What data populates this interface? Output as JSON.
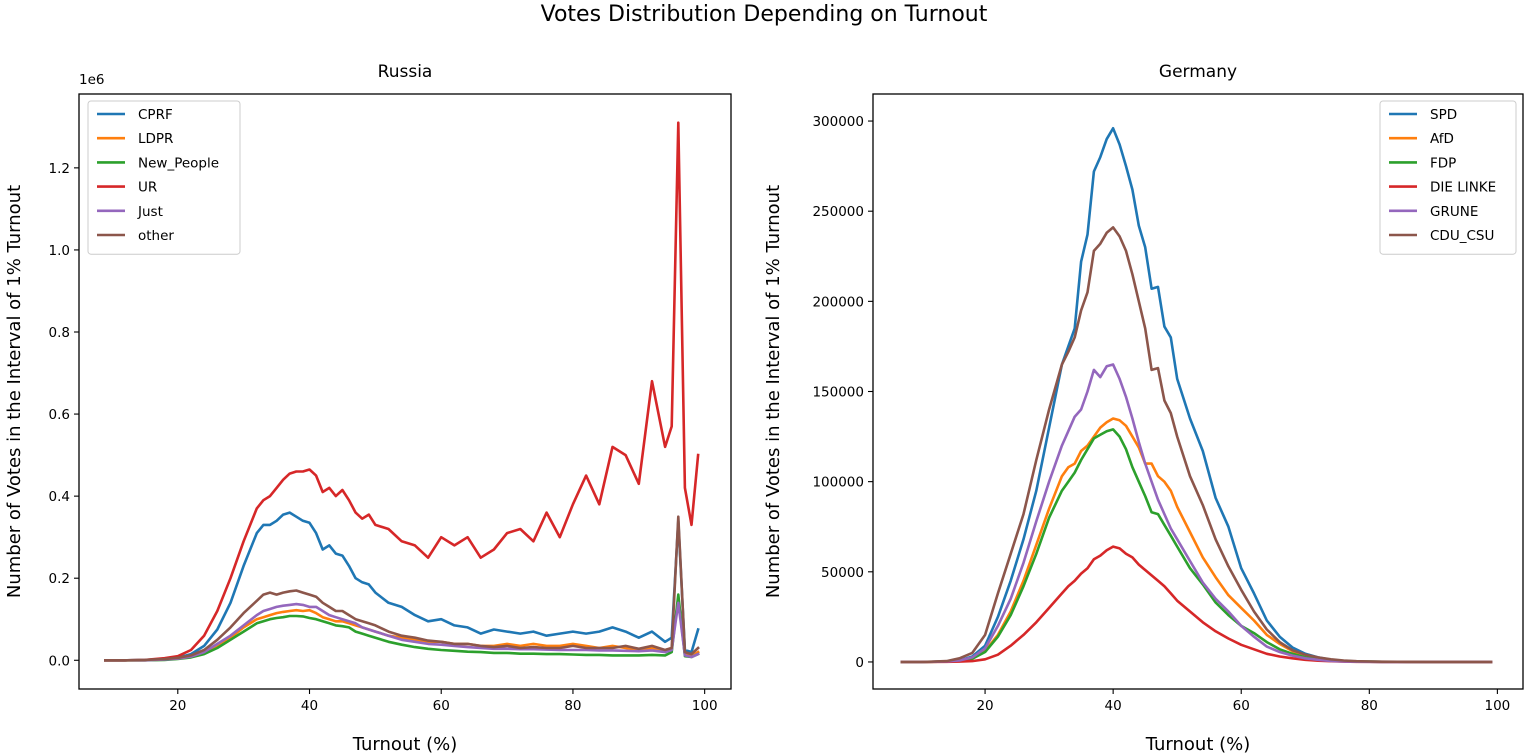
{
  "figure": {
    "title": "Votes Distribution Depending on Turnout"
  },
  "chart_data": [
    {
      "type": "line",
      "title": "Russia",
      "xlabel": "Turnout (%)",
      "ylabel": "Number of Votes in the Interval of 1% Turnout",
      "offset_text": "1e6",
      "xlim": [
        5,
        104
      ],
      "ylim": [
        -0.07,
        1.38
      ],
      "xticks": [
        20,
        40,
        60,
        80,
        100
      ],
      "yticks": [
        0.0,
        0.2,
        0.4,
        0.6,
        0.8,
        1.0,
        1.2
      ],
      "ytick_labels": [
        "0.0",
        "0.2",
        "0.4",
        "0.6",
        "0.8",
        "1.0",
        "1.2"
      ],
      "legend_position": "upper left",
      "x": [
        9,
        12,
        15,
        18,
        20,
        22,
        24,
        26,
        28,
        30,
        32,
        33,
        34,
        35,
        36,
        37,
        38,
        39,
        40,
        41,
        42,
        43,
        44,
        45,
        46,
        47,
        48,
        49,
        50,
        52,
        54,
        56,
        58,
        60,
        62,
        64,
        66,
        68,
        70,
        72,
        74,
        76,
        78,
        80,
        82,
        84,
        86,
        88,
        90,
        92,
        94,
        95,
        96,
        97,
        98,
        99
      ],
      "series": [
        {
          "name": "CPRF",
          "color": "#1f77b4",
          "values": [
            0,
            0,
            0.001,
            0.003,
            0.006,
            0.015,
            0.035,
            0.075,
            0.14,
            0.23,
            0.31,
            0.33,
            0.33,
            0.34,
            0.355,
            0.36,
            0.35,
            0.34,
            0.335,
            0.31,
            0.27,
            0.28,
            0.26,
            0.255,
            0.23,
            0.2,
            0.19,
            0.185,
            0.165,
            0.14,
            0.13,
            0.11,
            0.095,
            0.1,
            0.085,
            0.08,
            0.065,
            0.075,
            0.07,
            0.065,
            0.07,
            0.06,
            0.065,
            0.07,
            0.065,
            0.07,
            0.08,
            0.07,
            0.055,
            0.07,
            0.045,
            0.055,
            0.34,
            0.025,
            0.02,
            0.075
          ]
        },
        {
          "name": "LDPR",
          "color": "#ff7f0e",
          "values": [
            0,
            0,
            0,
            0.002,
            0.004,
            0.008,
            0.018,
            0.035,
            0.055,
            0.08,
            0.1,
            0.105,
            0.11,
            0.115,
            0.118,
            0.12,
            0.122,
            0.12,
            0.122,
            0.115,
            0.105,
            0.1,
            0.095,
            0.095,
            0.09,
            0.085,
            0.08,
            0.075,
            0.07,
            0.06,
            0.055,
            0.05,
            0.045,
            0.045,
            0.04,
            0.04,
            0.035,
            0.035,
            0.04,
            0.035,
            0.04,
            0.035,
            0.035,
            0.04,
            0.035,
            0.03,
            0.035,
            0.03,
            0.025,
            0.03,
            0.025,
            0.03,
            0.15,
            0.015,
            0.01,
            0.02
          ]
        },
        {
          "name": "New_People",
          "color": "#2ca02c",
          "values": [
            0,
            0,
            0,
            0.001,
            0.003,
            0.007,
            0.015,
            0.03,
            0.05,
            0.07,
            0.09,
            0.095,
            0.1,
            0.103,
            0.105,
            0.108,
            0.108,
            0.107,
            0.103,
            0.1,
            0.095,
            0.09,
            0.085,
            0.083,
            0.08,
            0.07,
            0.065,
            0.06,
            0.055,
            0.045,
            0.038,
            0.032,
            0.028,
            0.025,
            0.023,
            0.021,
            0.02,
            0.018,
            0.018,
            0.016,
            0.016,
            0.015,
            0.015,
            0.014,
            0.013,
            0.013,
            0.012,
            0.012,
            0.012,
            0.013,
            0.012,
            0.02,
            0.16,
            0.01,
            0.008,
            0.015
          ]
        },
        {
          "name": "UR",
          "color": "#d62728",
          "values": [
            0,
            0,
            0.001,
            0.005,
            0.01,
            0.025,
            0.06,
            0.12,
            0.2,
            0.29,
            0.37,
            0.39,
            0.4,
            0.42,
            0.44,
            0.455,
            0.46,
            0.46,
            0.465,
            0.45,
            0.41,
            0.42,
            0.4,
            0.415,
            0.39,
            0.36,
            0.345,
            0.355,
            0.33,
            0.32,
            0.29,
            0.28,
            0.25,
            0.3,
            0.28,
            0.3,
            0.25,
            0.27,
            0.31,
            0.32,
            0.29,
            0.36,
            0.3,
            0.38,
            0.45,
            0.38,
            0.52,
            0.5,
            0.43,
            0.68,
            0.52,
            0.57,
            1.31,
            0.42,
            0.33,
            0.5
          ]
        },
        {
          "name": "Just",
          "color": "#9467bd",
          "values": [
            0,
            0,
            0,
            0.002,
            0.004,
            0.009,
            0.02,
            0.04,
            0.06,
            0.085,
            0.11,
            0.12,
            0.125,
            0.13,
            0.133,
            0.135,
            0.137,
            0.135,
            0.13,
            0.13,
            0.12,
            0.11,
            0.105,
            0.1,
            0.095,
            0.09,
            0.08,
            0.075,
            0.07,
            0.06,
            0.05,
            0.045,
            0.04,
            0.038,
            0.035,
            0.032,
            0.03,
            0.028,
            0.028,
            0.027,
            0.027,
            0.026,
            0.025,
            0.025,
            0.025,
            0.024,
            0.024,
            0.023,
            0.022,
            0.024,
            0.02,
            0.025,
            0.14,
            0.012,
            0.008,
            0.015
          ]
        },
        {
          "name": "other",
          "color": "#8c564b",
          "values": [
            0,
            0,
            0.001,
            0.003,
            0.006,
            0.012,
            0.025,
            0.05,
            0.08,
            0.115,
            0.145,
            0.16,
            0.165,
            0.16,
            0.165,
            0.168,
            0.17,
            0.165,
            0.16,
            0.155,
            0.14,
            0.13,
            0.12,
            0.12,
            0.11,
            0.1,
            0.095,
            0.09,
            0.085,
            0.07,
            0.06,
            0.055,
            0.048,
            0.045,
            0.04,
            0.04,
            0.035,
            0.032,
            0.035,
            0.03,
            0.032,
            0.03,
            0.03,
            0.035,
            0.03,
            0.03,
            0.03,
            0.035,
            0.028,
            0.035,
            0.025,
            0.03,
            0.35,
            0.02,
            0.015,
            0.03
          ]
        }
      ]
    },
    {
      "type": "line",
      "title": "Germany",
      "xlabel": "Turnout (%)",
      "ylabel": "Number of Votes in the Interval of 1% Turnout",
      "xlim": [
        2.5,
        104
      ],
      "ylim": [
        -15000,
        315000
      ],
      "xticks": [
        20,
        40,
        60,
        80,
        100
      ],
      "yticks": [
        0,
        50000,
        100000,
        150000,
        200000,
        250000,
        300000
      ],
      "ytick_labels": [
        "0",
        "50000",
        "100000",
        "150000",
        "200000",
        "250000",
        "300000"
      ],
      "legend_position": "upper right",
      "x": [
        7,
        10,
        14,
        16,
        18,
        20,
        22,
        24,
        26,
        28,
        30,
        32,
        33,
        34,
        35,
        36,
        37,
        38,
        39,
        40,
        41,
        42,
        43,
        44,
        45,
        46,
        47,
        48,
        49,
        50,
        52,
        54,
        56,
        58,
        60,
        62,
        64,
        66,
        68,
        70,
        72,
        74,
        76,
        78,
        80,
        82,
        86,
        90,
        95,
        99
      ],
      "series": [
        {
          "name": "SPD",
          "color": "#1f77b4",
          "values": [
            0,
            0,
            300,
            800,
            3000,
            9000,
            25000,
            45000,
            68000,
            95000,
            130000,
            165000,
            175000,
            185000,
            222000,
            237000,
            272000,
            280000,
            290000,
            296000,
            287000,
            275000,
            262000,
            242000,
            230000,
            207000,
            208000,
            186000,
            180000,
            157000,
            135000,
            117000,
            91000,
            75000,
            52000,
            38000,
            23000,
            14000,
            8000,
            4500,
            2500,
            1200,
            600,
            300,
            200,
            100,
            50,
            20,
            10,
            0
          ]
        },
        {
          "name": "AfD",
          "color": "#ff7f0e",
          "values": [
            0,
            0,
            200,
            600,
            2000,
            6000,
            15000,
            28000,
            45000,
            65000,
            85000,
            103000,
            108000,
            110000,
            117000,
            120000,
            125000,
            130000,
            133000,
            135000,
            134000,
            131000,
            125000,
            119000,
            110000,
            110000,
            103000,
            100000,
            95000,
            86000,
            72000,
            58000,
            47000,
            37000,
            30000,
            23000,
            15000,
            10000,
            6000,
            3500,
            2000,
            1000,
            500,
            250,
            150,
            80,
            40,
            20,
            10,
            0
          ]
        },
        {
          "name": "FDP",
          "color": "#2ca02c",
          "values": [
            0,
            0,
            200,
            500,
            1800,
            5500,
            14000,
            26000,
            42000,
            60000,
            80000,
            95000,
            100000,
            105000,
            112000,
            118000,
            124000,
            126000,
            128000,
            129000,
            125000,
            118000,
            108000,
            100000,
            92000,
            83000,
            82000,
            76000,
            70000,
            64000,
            52000,
            43000,
            33000,
            26000,
            20000,
            16000,
            11000,
            7000,
            4500,
            2500,
            1500,
            800,
            400,
            200,
            120,
            70,
            35,
            15,
            8,
            0
          ]
        },
        {
          "name": "DIE LINKE",
          "color": "#d62728",
          "values": [
            0,
            0,
            100,
            200,
            500,
            1500,
            4000,
            9000,
            15000,
            22000,
            30000,
            38000,
            42000,
            45000,
            49000,
            52000,
            57000,
            59000,
            62000,
            64000,
            63000,
            60000,
            58000,
            54000,
            51000,
            48000,
            45000,
            42000,
            38000,
            34000,
            28000,
            22000,
            17000,
            13000,
            9500,
            7000,
            4500,
            3000,
            2000,
            1200,
            700,
            400,
            200,
            100,
            60,
            30,
            15,
            8,
            4,
            0
          ]
        },
        {
          "name": "GRUNE",
          "color": "#9467bd",
          "values": [
            0,
            0,
            300,
            800,
            2500,
            7500,
            20000,
            35000,
            55000,
            78000,
            100000,
            120000,
            128000,
            136000,
            140000,
            150000,
            162000,
            158000,
            164000,
            165000,
            157000,
            147000,
            135000,
            122000,
            110000,
            100000,
            90000,
            82000,
            74000,
            68000,
            56000,
            44000,
            35000,
            28000,
            20000,
            14000,
            8500,
            5500,
            3500,
            2000,
            1200,
            600,
            300,
            150,
            80,
            40,
            20,
            10,
            5,
            0
          ]
        },
        {
          "name": "CDU_CSU",
          "color": "#8c564b",
          "values": [
            0,
            0,
            500,
            2000,
            5000,
            15000,
            38000,
            60000,
            82000,
            112000,
            140000,
            165000,
            172000,
            180000,
            195000,
            205000,
            228000,
            232000,
            238000,
            241000,
            236000,
            228000,
            215000,
            200000,
            185000,
            162000,
            163000,
            145000,
            138000,
            125000,
            103000,
            87000,
            68000,
            53000,
            40000,
            28000,
            18000,
            11000,
            6500,
            4000,
            2500,
            1500,
            800,
            400,
            250,
            120,
            60,
            30,
            15,
            0
          ]
        }
      ]
    }
  ]
}
